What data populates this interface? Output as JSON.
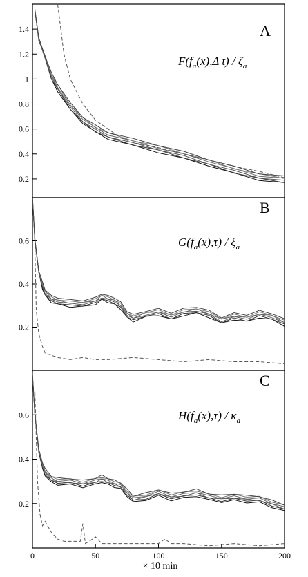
{
  "chart_data": {
    "type": "line",
    "x_label": "× 10 min",
    "x_ticks": [
      "0",
      "50",
      "100",
      "150",
      "200"
    ],
    "xlim": [
      0,
      200
    ],
    "grid": false,
    "panels": [
      {
        "label": "A",
        "formula": {
          "func": "F(",
          "var": "f",
          "sub": "a",
          "mid": "(x),Δ t) / ",
          "den": "ζ",
          "den_sub": "a"
        },
        "ylim": [
          0.05,
          1.6
        ],
        "y_ticks": [
          "0.2",
          "0.4",
          "0.6",
          "0.8",
          "1",
          "1.2",
          "1.4"
        ],
        "solid_series": {
          "x": [
            2,
            5,
            10,
            15,
            20,
            30,
            40,
            50,
            60,
            80,
            100,
            120,
            140,
            160,
            180,
            200
          ],
          "values": [
            1.55,
            1.32,
            1.18,
            1.02,
            0.93,
            0.78,
            0.67,
            0.6,
            0.55,
            0.49,
            0.44,
            0.39,
            0.33,
            0.27,
            0.22,
            0.19
          ],
          "count": 6
        },
        "dashed_series": {
          "x": [
            20,
            25,
            30,
            40,
            50,
            60,
            70,
            80,
            90,
            100,
            120,
            140,
            160,
            180,
            200
          ],
          "values": [
            1.6,
            1.2,
            1.0,
            0.8,
            0.67,
            0.6,
            0.53,
            0.49,
            0.47,
            0.45,
            0.4,
            0.35,
            0.3,
            0.26,
            0.21
          ]
        }
      },
      {
        "label": "B",
        "formula": {
          "func": "G(",
          "var": "f",
          "sub": "a",
          "mid": "(x),τ) / ",
          "den": "ξ",
          "den_sub": "a"
        },
        "ylim": [
          0.0,
          0.8
        ],
        "y_ticks": [
          "0.2",
          "0.4",
          "0.6"
        ],
        "solid_series": {
          "x": [
            0,
            2,
            5,
            8,
            10,
            15,
            20,
            30,
            40,
            50,
            55,
            60,
            65,
            70,
            75,
            80,
            90,
            100,
            110,
            120,
            130,
            140,
            150,
            160,
            170,
            180,
            190,
            200
          ],
          "values": [
            0.8,
            0.6,
            0.46,
            0.39,
            0.36,
            0.33,
            0.32,
            0.31,
            0.31,
            0.32,
            0.34,
            0.33,
            0.32,
            0.3,
            0.26,
            0.24,
            0.26,
            0.27,
            0.25,
            0.27,
            0.28,
            0.26,
            0.23,
            0.25,
            0.24,
            0.26,
            0.25,
            0.22
          ],
          "count": 6
        },
        "dashed_series": {
          "x": [
            2,
            3,
            5,
            8,
            10,
            15,
            20,
            30,
            40,
            50,
            60,
            80,
            100,
            120,
            140,
            160,
            180,
            200
          ],
          "values": [
            0.55,
            0.28,
            0.17,
            0.11,
            0.08,
            0.07,
            0.06,
            0.05,
            0.06,
            0.05,
            0.05,
            0.06,
            0.05,
            0.04,
            0.05,
            0.04,
            0.04,
            0.03
          ]
        }
      },
      {
        "label": "C",
        "formula": {
          "func": "H(",
          "var": "f",
          "sub": "a",
          "mid": "(x),τ) / ",
          "den": "κ",
          "den_sub": "a"
        },
        "ylim": [
          0.0,
          0.8
        ],
        "y_ticks": [
          "0.2",
          "0.4",
          "0.6"
        ],
        "solid_series": {
          "x": [
            0,
            2,
            5,
            8,
            10,
            15,
            20,
            30,
            40,
            50,
            55,
            60,
            65,
            70,
            75,
            80,
            90,
            100,
            110,
            120,
            130,
            140,
            150,
            160,
            170,
            180,
            190,
            200
          ],
          "values": [
            0.78,
            0.6,
            0.44,
            0.37,
            0.34,
            0.31,
            0.3,
            0.3,
            0.29,
            0.3,
            0.31,
            0.3,
            0.29,
            0.28,
            0.25,
            0.22,
            0.23,
            0.25,
            0.23,
            0.24,
            0.25,
            0.23,
            0.22,
            0.23,
            0.22,
            0.22,
            0.2,
            0.18
          ],
          "count": 6
        },
        "dashed_series": {
          "x": [
            2,
            4,
            6,
            8,
            10,
            15,
            20,
            25,
            30,
            38,
            40,
            42,
            45,
            50,
            55,
            60,
            80,
            100,
            105,
            110,
            120,
            140,
            160,
            180,
            200
          ],
          "values": [
            0.7,
            0.3,
            0.15,
            0.1,
            0.12,
            0.07,
            0.04,
            0.03,
            0.03,
            0.03,
            0.11,
            0.02,
            0.03,
            0.05,
            0.02,
            0.02,
            0.02,
            0.02,
            0.04,
            0.02,
            0.02,
            0.01,
            0.02,
            0.01,
            0.02
          ]
        }
      }
    ]
  }
}
